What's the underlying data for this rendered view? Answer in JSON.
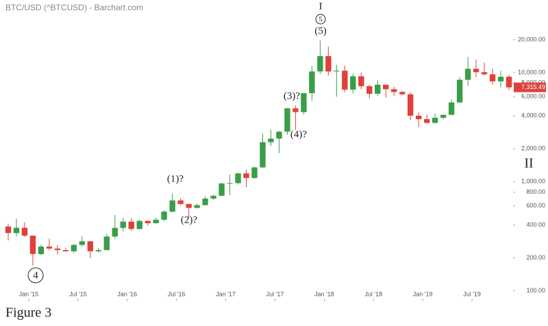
{
  "chart_data": {
    "type": "candlestick",
    "title": "BTC/USD (^BTCUSD) - Barchart.com",
    "x": [
      "2014-10",
      "2014-11",
      "2014-12",
      "2015-01",
      "2015-02",
      "2015-03",
      "2015-04",
      "2015-05",
      "2015-06",
      "2015-07",
      "2015-08",
      "2015-09",
      "2015-10",
      "2015-11",
      "2015-12",
      "2016-01",
      "2016-02",
      "2016-03",
      "2016-04",
      "2016-05",
      "2016-06",
      "2016-07",
      "2016-08",
      "2016-09",
      "2016-10",
      "2016-11",
      "2016-12",
      "2017-01",
      "2017-02",
      "2017-03",
      "2017-04",
      "2017-05",
      "2017-06",
      "2017-07",
      "2017-08",
      "2017-09",
      "2017-10",
      "2017-11",
      "2017-12",
      "2018-01",
      "2018-02",
      "2018-03",
      "2018-04",
      "2018-05",
      "2018-06",
      "2018-07",
      "2018-08",
      "2018-09",
      "2018-10",
      "2018-11",
      "2018-12",
      "2019-01",
      "2019-02",
      "2019-03",
      "2019-04",
      "2019-05",
      "2019-06",
      "2019-07",
      "2019-08",
      "2019-09",
      "2019-10",
      "2019-11"
    ],
    "open": [
      388,
      338,
      378,
      320,
      217,
      254,
      244,
      236,
      230,
      263,
      284,
      230,
      236,
      314,
      377,
      430,
      368,
      437,
      416,
      448,
      531,
      673,
      624,
      575,
      609,
      700,
      742,
      963,
      970,
      1190,
      1080,
      1350,
      2300,
      2480,
      2870,
      4700,
      4340,
      6470,
      10230,
      14150,
      10230,
      10400,
      6970,
      9240,
      7500,
      6390,
      7730,
      7030,
      6630,
      6320,
      4020,
      3740,
      3460,
      3850,
      4100,
      5320,
      8580,
      10820,
      10080,
      9630,
      8300,
      9150
    ],
    "high": [
      411,
      457,
      425,
      320,
      265,
      300,
      261,
      247,
      268,
      315,
      285,
      247,
      334,
      495,
      465,
      462,
      448,
      439,
      467,
      546,
      778,
      704,
      628,
      630,
      740,
      755,
      975,
      1160,
      1210,
      1290,
      1370,
      2760,
      2990,
      2920,
      4740,
      4980,
      6470,
      11500,
      19800,
      17250,
      11780,
      11600,
      9760,
      10000,
      7760,
      8470,
      7760,
      7400,
      6790,
      6550,
      4310,
      4110,
      4210,
      4110,
      5640,
      9070,
      13880,
      13130,
      12320,
      10900,
      10370,
      9500
    ],
    "low": [
      289,
      316,
      310,
      170,
      212,
      235,
      215,
      228,
      221,
      253,
      199,
      224,
      235,
      297,
      350,
      354,
      366,
      396,
      414,
      436,
      523,
      609,
      466,
      568,
      605,
      680,
      740,
      752,
      940,
      890,
      1060,
      1340,
      2130,
      1830,
      2700,
      2980,
      4110,
      5520,
      9720,
      9400,
      6000,
      6600,
      6430,
      7000,
      5780,
      6120,
      5880,
      6100,
      6180,
      3650,
      3160,
      3400,
      3390,
      3730,
      4070,
      5310,
      7560,
      9070,
      9380,
      7760,
      7300,
      6900
    ],
    "close": [
      338,
      378,
      320,
      217,
      254,
      244,
      236,
      230,
      263,
      284,
      230,
      236,
      314,
      377,
      430,
      368,
      437,
      416,
      448,
      531,
      673,
      624,
      575,
      609,
      700,
      742,
      963,
      970,
      1190,
      1080,
      1350,
      2300,
      2480,
      2870,
      4700,
      4340,
      6470,
      10230,
      14150,
      10230,
      10400,
      6970,
      9240,
      7500,
      6390,
      7730,
      7030,
      6630,
      6320,
      4020,
      3740,
      3460,
      3850,
      4100,
      5320,
      8580,
      10820,
      10080,
      9630,
      8300,
      9150,
      7315.49
    ],
    "up_color": "#3a9e48",
    "down_color": "#e0403a",
    "xlim": [
      "2014-10",
      "2019-12"
    ],
    "xticks": [
      {
        "value": "2015-01",
        "label": "Jan '15"
      },
      {
        "value": "2015-07",
        "label": "Jul '15"
      },
      {
        "value": "2016-01",
        "label": "Jan '16"
      },
      {
        "value": "2016-07",
        "label": "Jul '16"
      },
      {
        "value": "2017-01",
        "label": "Jan '17"
      },
      {
        "value": "2017-07",
        "label": "Jul '17"
      },
      {
        "value": "2018-01",
        "label": "Jan '18"
      },
      {
        "value": "2018-07",
        "label": "Jul '18"
      },
      {
        "value": "2019-01",
        "label": "Jan '19"
      },
      {
        "value": "2019-07",
        "label": "Jul '19"
      }
    ],
    "ylim": [
      80,
      40000
    ],
    "log_scale": true,
    "grid": false,
    "yticks": [
      {
        "value": 100,
        "label": "100.00"
      },
      {
        "value": 200,
        "label": "200.00"
      },
      {
        "value": 400,
        "label": "400.00"
      },
      {
        "value": 600,
        "label": "600.00"
      },
      {
        "value": 800,
        "label": "800.00"
      },
      {
        "value": 1000,
        "label": "1,000.00"
      },
      {
        "value": 2000,
        "label": "2,000.00"
      },
      {
        "value": 4000,
        "label": "4,000.00"
      },
      {
        "value": 6000,
        "label": "6,000.00"
      },
      {
        "value": 8000,
        "label": "8,000.00"
      },
      {
        "value": 10000,
        "label": "10,000.00"
      },
      {
        "value": 20000,
        "label": "20,000.00"
      }
    ],
    "last_price": {
      "value": 7315.49,
      "label": "7,315.49",
      "color": "#e0403a"
    },
    "annotations": [
      "I",
      "5",
      "(5)",
      "(3)?",
      "(4)?",
      "(1)?",
      "(2)?",
      "4",
      "II",
      "Figure 3"
    ]
  }
}
